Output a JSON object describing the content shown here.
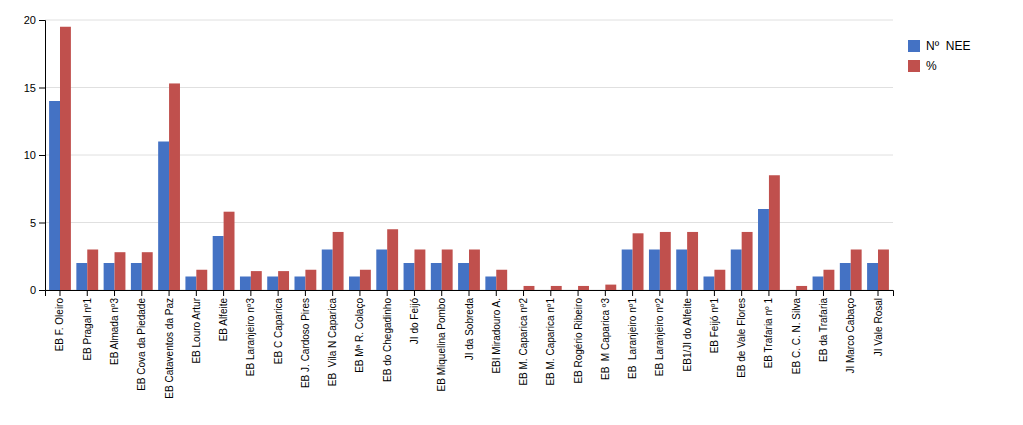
{
  "chart_data": {
    "type": "bar",
    "categories": [
      "EB F. Oleiro",
      "EB Pragal nº1",
      "EB Almada nº3",
      "EB Cova da Piedade",
      "EB Cataventos da Paz",
      "EB Louro Artur",
      "EB Alfeite",
      "EB Laranjeiro nº3",
      "EB C Caparica",
      "EB J. Cardoso Pires",
      "EB  Vila N Caparica",
      "EB Mª R. Colaço",
      "EB do Chegadinho",
      "JI do Feijó",
      "EB Miquelina Pombo",
      "JI da Sobreda",
      "EBI Miradouro A.",
      "EB M. Caparica nº2",
      "EB M. Caparica nº1",
      "EB Rogério Ribeiro",
      "EB  M Caparica º3",
      "EB  Laranjeiro nº1",
      "EB Laranjeiro nº2",
      "EB1/JI do Alfeite",
      "EB Feijó nº1",
      "EB de Vale Flores",
      "EB Trafaria nº 1",
      "EB C. C. N. Silva",
      "EB da Trafaria",
      "JI Marco Cabaço",
      "JI Vale Rosal"
    ],
    "series": [
      {
        "name": "Nº  NEE",
        "color": "#4472C4",
        "values": [
          14,
          2,
          2,
          2,
          11,
          1,
          4,
          1,
          1,
          1,
          3,
          1,
          3,
          2,
          2,
          2,
          1,
          0,
          0,
          0,
          0,
          3,
          3,
          3,
          1,
          3,
          6,
          0,
          1,
          2,
          2
        ]
      },
      {
        "name": "%",
        "color": "#C0504D",
        "values": [
          19.5,
          3.0,
          2.8,
          2.8,
          15.3,
          1.5,
          5.8,
          1.4,
          1.4,
          1.5,
          4.3,
          1.5,
          4.5,
          3.0,
          3.0,
          3.0,
          1.5,
          0.3,
          0.3,
          0.3,
          0.4,
          4.2,
          4.3,
          4.3,
          1.5,
          4.3,
          8.5,
          0.3,
          1.5,
          3.0,
          3.0
        ]
      }
    ],
    "ylim": [
      0,
      20
    ],
    "yticks": [
      0,
      5,
      10,
      15,
      20
    ],
    "grid": true,
    "legend": "right"
  }
}
